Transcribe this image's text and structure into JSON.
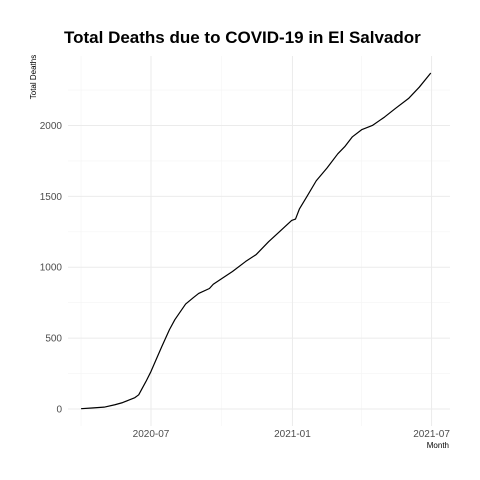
{
  "chart_data": {
    "type": "line",
    "title": "Total Deaths due to COVID-19 in El Salvador",
    "xlabel": "Month",
    "ylabel": "Total Deaths",
    "x_ticks": [
      "2020-07",
      "2021-01",
      "2021-07"
    ],
    "y_ticks": [
      0,
      500,
      1000,
      1500,
      2000
    ],
    "xlim": [
      "2020-03-15",
      "2021-07-25"
    ],
    "ylim": [
      -120,
      2490
    ],
    "grid": true,
    "legend": "none",
    "series": [
      {
        "x": [
          "2020-04-01",
          "2020-04-15",
          "2020-05-01",
          "2020-05-15",
          "2020-05-25",
          "2020-06-01",
          "2020-06-10",
          "2020-06-15",
          "2020-06-20",
          "2020-06-25",
          "2020-07-01",
          "2020-07-07",
          "2020-07-15",
          "2020-07-25",
          "2020-08-01",
          "2020-08-15",
          "2020-08-25",
          "2020-09-01",
          "2020-09-15",
          "2020-09-20",
          "2020-10-01",
          "2020-10-15",
          "2020-11-01",
          "2020-11-15",
          "2020-12-01",
          "2020-12-15",
          "2020-12-31",
          "2021-01-05",
          "2021-01-10",
          "2021-01-20",
          "2021-02-01",
          "2021-02-15",
          "2021-03-01",
          "2021-03-10",
          "2021-03-20",
          "2021-04-01",
          "2021-04-15",
          "2021-05-01",
          "2021-05-15",
          "2021-06-01",
          "2021-06-15",
          "2021-06-30"
        ],
        "y": [
          2,
          7,
          13,
          30,
          45,
          60,
          80,
          100,
          150,
          200,
          265,
          340,
          440,
          560,
          630,
          740,
          785,
          815,
          850,
          880,
          920,
          970,
          1040,
          1090,
          1180,
          1250,
          1330,
          1340,
          1410,
          1500,
          1610,
          1700,
          1800,
          1850,
          1920,
          1970,
          2000,
          2060,
          2120,
          2190,
          2270,
          2370
        ]
      }
    ]
  }
}
